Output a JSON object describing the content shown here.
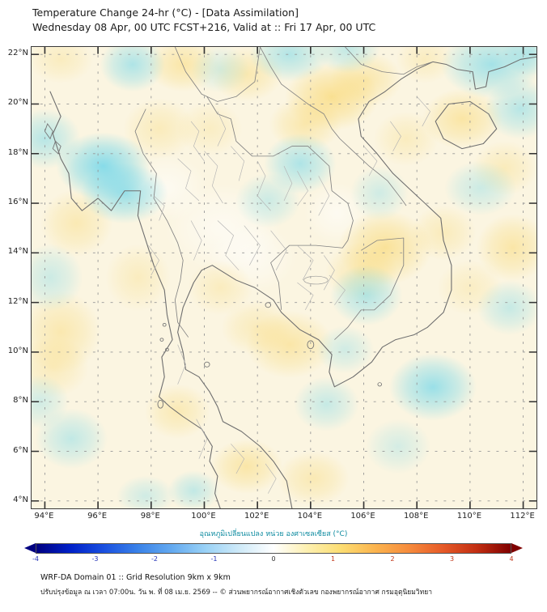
{
  "header": {
    "title": "Temperature Change 24-hr (°C) - [Data Assimilation]",
    "subtitle": "Wednesday 08 Apr, 00 UTC FCST+216, Valid at :: Fri 17 Apr, 00 UTC"
  },
  "map": {
    "lon_min": 93.5,
    "lon_max": 112.5,
    "lat_min": 3.7,
    "lat_max": 22.3,
    "x_ticks": [
      {
        "label": "94°E",
        "lon": 94
      },
      {
        "label": "96°E",
        "lon": 96
      },
      {
        "label": "98°E",
        "lon": 98
      },
      {
        "label": "100°E",
        "lon": 100
      },
      {
        "label": "102°E",
        "lon": 102
      },
      {
        "label": "104°E",
        "lon": 104
      },
      {
        "label": "106°E",
        "lon": 106
      },
      {
        "label": "108°E",
        "lon": 108
      },
      {
        "label": "110°E",
        "lon": 110
      },
      {
        "label": "112°E",
        "lon": 112
      }
    ],
    "y_ticks": [
      {
        "label": "22°N",
        "lat": 22
      },
      {
        "label": "20°N",
        "lat": 20
      },
      {
        "label": "18°N",
        "lat": 18
      },
      {
        "label": "16°N",
        "lat": 16
      },
      {
        "label": "14°N",
        "lat": 14
      },
      {
        "label": "12°N",
        "lat": 12
      },
      {
        "label": "10°N",
        "lat": 10
      },
      {
        "label": "8°N",
        "lat": 8
      },
      {
        "label": "6°N",
        "lat": 6
      },
      {
        "label": "4°N",
        "lat": 4
      }
    ]
  },
  "chart_data": {
    "type": "heatmap",
    "title": "Temperature Change 24-hr (°C) - [Data Assimilation]",
    "units": "°C",
    "value_range": [
      -4,
      4
    ],
    "region": "Thailand / Indochina (WRF-DA Domain 01)",
    "anomaly_centers": [
      {
        "lon": 96.2,
        "lat": 17.5,
        "dc": -2.4,
        "rx": 1.3,
        "ry": 1.0
      },
      {
        "lon": 97.0,
        "lat": 16.4,
        "dc": -2.0,
        "rx": 1.2,
        "ry": 0.9
      },
      {
        "lon": 94.0,
        "lat": 18.6,
        "dc": -1.4,
        "rx": 1.0,
        "ry": 0.9
      },
      {
        "lon": 97.3,
        "lat": 21.6,
        "dc": -1.6,
        "rx": 0.9,
        "ry": 0.8
      },
      {
        "lon": 100.6,
        "lat": 21.4,
        "dc": -0.8,
        "rx": 0.8,
        "ry": 0.7
      },
      {
        "lon": 103.2,
        "lat": 22.0,
        "dc": -1.5,
        "rx": 1.1,
        "ry": 0.8
      },
      {
        "lon": 105.4,
        "lat": 22.2,
        "dc": -1.2,
        "rx": 0.9,
        "ry": 0.7
      },
      {
        "lon": 110.8,
        "lat": 21.6,
        "dc": -1.8,
        "rx": 1.4,
        "ry": 1.0
      },
      {
        "lon": 111.9,
        "lat": 19.8,
        "dc": -1.4,
        "rx": 1.0,
        "ry": 0.9
      },
      {
        "lon": 112.3,
        "lat": 22.1,
        "dc": -1.3,
        "rx": 0.8,
        "ry": 0.7
      },
      {
        "lon": 103.6,
        "lat": 17.6,
        "dc": -1.6,
        "rx": 1.0,
        "ry": 0.9
      },
      {
        "lon": 102.4,
        "lat": 16.1,
        "dc": -1.0,
        "rx": 0.9,
        "ry": 0.8
      },
      {
        "lon": 106.6,
        "lat": 16.4,
        "dc": -0.9,
        "rx": 0.8,
        "ry": 0.8
      },
      {
        "lon": 110.4,
        "lat": 16.6,
        "dc": -1.0,
        "rx": 1.0,
        "ry": 0.8
      },
      {
        "lon": 94.2,
        "lat": 13.0,
        "dc": -1.0,
        "rx": 0.9,
        "ry": 1.0
      },
      {
        "lon": 106.1,
        "lat": 12.3,
        "dc": -1.5,
        "rx": 1.0,
        "ry": 0.9
      },
      {
        "lon": 105.3,
        "lat": 10.1,
        "dc": -0.9,
        "rx": 0.8,
        "ry": 0.7
      },
      {
        "lon": 108.6,
        "lat": 8.6,
        "dc": -2.0,
        "rx": 1.2,
        "ry": 1.0
      },
      {
        "lon": 104.6,
        "lat": 7.9,
        "dc": -1.1,
        "rx": 0.9,
        "ry": 0.8
      },
      {
        "lon": 111.5,
        "lat": 11.8,
        "dc": -1.1,
        "rx": 0.9,
        "ry": 0.8
      },
      {
        "lon": 95.0,
        "lat": 6.5,
        "dc": -1.2,
        "rx": 1.0,
        "ry": 0.9
      },
      {
        "lon": 93.8,
        "lat": 8.0,
        "dc": -0.9,
        "rx": 0.8,
        "ry": 0.8
      },
      {
        "lon": 99.6,
        "lat": 4.4,
        "dc": -1.2,
        "rx": 0.7,
        "ry": 0.6
      },
      {
        "lon": 97.8,
        "lat": 4.2,
        "dc": -0.9,
        "rx": 0.8,
        "ry": 0.6
      },
      {
        "lon": 107.3,
        "lat": 6.2,
        "dc": -0.8,
        "rx": 0.9,
        "ry": 0.8
      },
      {
        "lon": 99.2,
        "lat": 21.6,
        "dc": 1.5,
        "rx": 1.0,
        "ry": 0.8
      },
      {
        "lon": 101.6,
        "lat": 21.2,
        "dc": 1.3,
        "rx": 1.0,
        "ry": 0.8
      },
      {
        "lon": 104.8,
        "lat": 20.3,
        "dc": 2.1,
        "rx": 1.3,
        "ry": 1.0
      },
      {
        "lon": 103.8,
        "lat": 19.2,
        "dc": 1.4,
        "rx": 1.0,
        "ry": 0.8
      },
      {
        "lon": 106.1,
        "lat": 21.0,
        "dc": 1.4,
        "rx": 1.0,
        "ry": 0.8
      },
      {
        "lon": 108.3,
        "lat": 21.8,
        "dc": 0.9,
        "rx": 0.8,
        "ry": 0.7
      },
      {
        "lon": 109.7,
        "lat": 19.4,
        "dc": 1.6,
        "rx": 1.1,
        "ry": 0.9
      },
      {
        "lon": 94.6,
        "lat": 21.8,
        "dc": 0.9,
        "rx": 0.9,
        "ry": 0.7
      },
      {
        "lon": 98.3,
        "lat": 19.0,
        "dc": 1.0,
        "rx": 1.0,
        "ry": 0.9
      },
      {
        "lon": 100.2,
        "lat": 19.0,
        "dc": 0.8,
        "rx": 0.9,
        "ry": 0.8
      },
      {
        "lon": 95.2,
        "lat": 15.2,
        "dc": 1.2,
        "rx": 1.0,
        "ry": 1.0
      },
      {
        "lon": 94.6,
        "lat": 10.8,
        "dc": 1.3,
        "rx": 1.1,
        "ry": 1.2
      },
      {
        "lon": 94.3,
        "lat": 9.4,
        "dc": 1.0,
        "rx": 1.0,
        "ry": 0.9
      },
      {
        "lon": 97.5,
        "lat": 13.0,
        "dc": 0.9,
        "rx": 0.9,
        "ry": 1.0
      },
      {
        "lon": 100.6,
        "lat": 12.6,
        "dc": 0.9,
        "rx": 0.9,
        "ry": 0.8
      },
      {
        "lon": 106.8,
        "lat": 14.2,
        "dc": 1.9,
        "rx": 1.3,
        "ry": 1.1
      },
      {
        "lon": 105.9,
        "lat": 13.2,
        "dc": 1.2,
        "rx": 1.0,
        "ry": 0.9
      },
      {
        "lon": 109.0,
        "lat": 14.8,
        "dc": 1.0,
        "rx": 0.9,
        "ry": 0.8
      },
      {
        "lon": 111.6,
        "lat": 14.2,
        "dc": 1.5,
        "rx": 1.0,
        "ry": 1.0
      },
      {
        "lon": 111.3,
        "lat": 17.4,
        "dc": 1.0,
        "rx": 0.9,
        "ry": 0.8
      },
      {
        "lon": 107.6,
        "lat": 18.6,
        "dc": 0.9,
        "rx": 0.9,
        "ry": 0.8
      },
      {
        "lon": 103.2,
        "lat": 10.3,
        "dc": 1.5,
        "rx": 1.2,
        "ry": 1.0
      },
      {
        "lon": 102.0,
        "lat": 11.0,
        "dc": 1.0,
        "rx": 1.0,
        "ry": 0.8
      },
      {
        "lon": 99.0,
        "lat": 7.6,
        "dc": 1.2,
        "rx": 0.9,
        "ry": 0.8
      },
      {
        "lon": 101.6,
        "lat": 5.4,
        "dc": 1.5,
        "rx": 1.0,
        "ry": 0.8
      },
      {
        "lon": 104.1,
        "lat": 4.9,
        "dc": 1.2,
        "rx": 1.0,
        "ry": 0.8
      },
      {
        "lon": 110.0,
        "lat": 12.6,
        "dc": 0.8,
        "rx": 0.9,
        "ry": 0.8
      },
      {
        "lon": 100.7,
        "lat": 15.0,
        "dc": 0,
        "rx": 1.6,
        "ry": 1.3
      },
      {
        "lon": 101.8,
        "lat": 13.8,
        "dc": 0,
        "rx": 1.2,
        "ry": 1.0
      },
      {
        "lon": 98.6,
        "lat": 16.6,
        "dc": 0,
        "rx": 1.1,
        "ry": 1.0
      },
      {
        "lon": 105.0,
        "lat": 15.6,
        "dc": 0,
        "rx": 0.9,
        "ry": 0.9
      }
    ]
  },
  "colorbar": {
    "label": "อุณหภูมิเปลี่ยนแปลง หน่วย องศาเซลเซียส (°C)",
    "min": -4,
    "max": 4,
    "ticks": [
      -4,
      -3,
      -2,
      -1,
      0,
      1,
      2,
      3,
      4
    ],
    "gradient": [
      "#000080",
      "#0020c8",
      "#1a50e0",
      "#3a82e8",
      "#64aaf0",
      "#9ad2f6",
      "#cfeaf8",
      "#ffffff",
      "#fdf0b0",
      "#fcdd72",
      "#fbb44e",
      "#f68b3c",
      "#e65a28",
      "#c22e12",
      "#7f0000"
    ]
  },
  "footer": {
    "line1": "WRF-DA Domain 01 :: Grid Resolution 9km x 9km",
    "line2": "ปรับปรุงข้อมูล ณ เวลา 07:00น. วัน พ. ที่ 08 เม.ย. 2569 -- © ส่วนพยากรณ์อากาศเชิงตัวเลข กองพยากรณ์อากาศ กรมอุตุนิยมวิทยา"
  },
  "colors": {
    "background": "#fbf5e1",
    "negative_rgb": "106,213,235",
    "positive_rgb": "248,209,88",
    "label_teal": "#0e8ba0",
    "tick_negative": "#2433b8",
    "tick_positive": "#c13518"
  }
}
